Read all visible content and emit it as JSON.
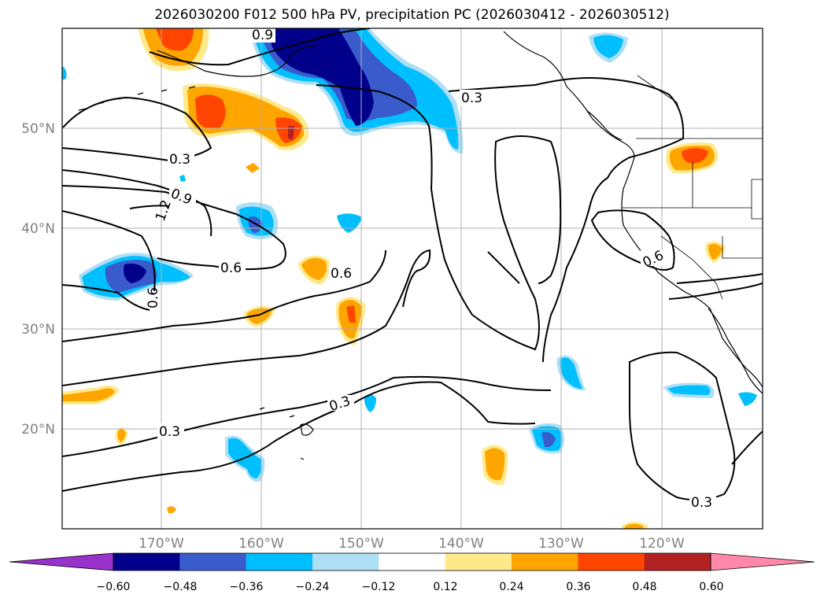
{
  "title": "2026030200 F012 500 hPa PV, precipitation PC (2026030412 - 2026030512)",
  "map": {
    "lat_labels": [
      "50°N",
      "40°N",
      "30°N",
      "20°N"
    ],
    "lon_labels": [
      "170°W",
      "160°W",
      "150°W",
      "140°W",
      "130°W",
      "120°W"
    ],
    "gridlines": true
  },
  "contour_labels": [
    "0.9",
    "0.3",
    "0.3",
    "0.9",
    "1.2",
    "0.6",
    "0.6",
    "0.6",
    "0.6",
    "0.3",
    "0.3",
    "0.3"
  ],
  "colorbar": {
    "ticks": [
      "−0.60",
      "−0.48",
      "−0.36",
      "−0.24",
      "−0.12",
      "0.12",
      "0.24",
      "0.36",
      "0.48",
      "0.60"
    ],
    "colors": [
      "#9932cc",
      "#00008b",
      "#3a5bcc",
      "#00bfff",
      "#addff5",
      "#ffffff",
      "#ffe98a",
      "#ffa500",
      "#ff4500",
      "#b22222",
      "#ff88aa"
    ]
  }
}
